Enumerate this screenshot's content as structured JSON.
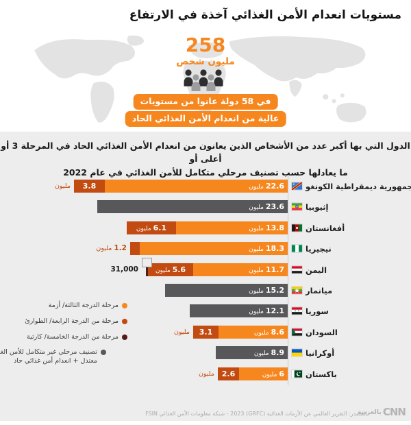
{
  "header": {
    "title": "مستويات انعدام الأمن الغذائي آخذة في الارتفاع",
    "big_number": "258",
    "big_number_label": "مليون شخص",
    "highlight_line1": "في 58 دولة عانوا من مستويات",
    "highlight_line2": "عالية من انعدام الأمن الغذائي الحاد",
    "accent_color": "#F6871F"
  },
  "subtitle": {
    "line1": "الدول التي بها أكبر عدد من الأشخاص الذين يعانون من انعدام الأمن الغذائي الحاد في المرحلة 3 أو أعلى أو",
    "line2": "ما يعادلها حسب تصنيف مرحلي متكامل للأمن الغذائي في عام 2022"
  },
  "chart_data": {
    "type": "bar",
    "orientation": "horizontal-rtl-stacked",
    "unit": "مليون",
    "xlim_millions": [
      0,
      26.4
    ],
    "grid": false,
    "legend_position": "bottom-left",
    "phases": {
      "p3": {
        "label": "مرحلة الدرجة الثالثة/ أزمة",
        "color": "#F6871F"
      },
      "p4": {
        "label": "مرحلة من الدرجة الرابعة/ الطوارئ",
        "color": "#C14B10"
      },
      "p5": {
        "label": "مرحلة من الدرجة الخامسة/ كارثية",
        "color": "#571A1A"
      },
      "none": {
        "label": "تصنيف مرحلي غير متكامل للأمن الغذائي",
        "label2": "معتدل + انعدام أمن غذائي حاد",
        "color": "#58585A"
      }
    },
    "categories": [
      "جمهورية ديمقراطية الكونغو",
      "إثيوبيا",
      "أفغانستان",
      "نيجيريا",
      "اليمن",
      "ميانمار",
      "سوريا",
      "السودان",
      "أوكرانيا",
      "باكستان"
    ],
    "rows": [
      {
        "country": "جمهورية ديمقراطية الكونغو",
        "flag": "drc",
        "segments": [
          {
            "phase": "p3",
            "value": 22.6,
            "show": "num_unit"
          },
          {
            "phase": "p4",
            "value": 3.8,
            "show": "num"
          }
        ],
        "outside": {
          "unit": true,
          "color": "p4"
        }
      },
      {
        "country": "إثيوبيا",
        "flag": "ethiopia",
        "segments": [
          {
            "phase": "none",
            "value": 23.6,
            "show": "num_unit"
          }
        ]
      },
      {
        "country": "أفغانستان",
        "flag": "afghanistan",
        "segments": [
          {
            "phase": "p3",
            "value": 13.8,
            "show": "num_unit"
          },
          {
            "phase": "p4",
            "value": 6.1,
            "show": "num_unit"
          }
        ]
      },
      {
        "country": "نيجيريا",
        "flag": "nigeria",
        "segments": [
          {
            "phase": "p3",
            "value": 18.3,
            "show": "num_unit"
          },
          {
            "phase": "p4",
            "value": 1.2,
            "show": "none"
          }
        ],
        "outside": {
          "num": "1.2",
          "unit": true,
          "color": "p4"
        }
      },
      {
        "country": "اليمن",
        "flag": "yemen",
        "segments": [
          {
            "phase": "p3",
            "value": 11.7,
            "show": "num_unit"
          },
          {
            "phase": "p4",
            "value": 5.6,
            "show": "num_unit"
          }
        ],
        "p5": {
          "value": 0.031,
          "label": "31,000"
        }
      },
      {
        "country": "ميانمار",
        "flag": "myanmar",
        "segments": [
          {
            "phase": "none",
            "value": 15.2,
            "show": "num_unit"
          }
        ]
      },
      {
        "country": "سوريا",
        "flag": "syria",
        "segments": [
          {
            "phase": "none",
            "value": 12.1,
            "show": "num_unit"
          }
        ]
      },
      {
        "country": "السودان",
        "flag": "sudan",
        "segments": [
          {
            "phase": "p3",
            "value": 8.6,
            "show": "num_unit"
          },
          {
            "phase": "p4",
            "value": 3.1,
            "show": "num"
          }
        ],
        "outside": {
          "unit": true,
          "color": "p4"
        }
      },
      {
        "country": "أوكرانيا",
        "flag": "ukraine",
        "segments": [
          {
            "phase": "none",
            "value": 8.9,
            "show": "num_unit"
          }
        ]
      },
      {
        "country": "باكستان",
        "flag": "pakistan",
        "segments": [
          {
            "phase": "p3",
            "value": 6,
            "show": "num_unit"
          },
          {
            "phase": "p4",
            "value": 2.6,
            "show": "num"
          }
        ],
        "outside": {
          "unit": true,
          "color": "p4"
        }
      }
    ]
  },
  "footer": {
    "source": "المصدر: التقرير العالمي عن الأزمات الغذائية (GRFC) 2023 - شبكة معلومات الأمن الغذائي FSIN",
    "logo_cnn": "CNN",
    "logo_arabic": "بالعربية"
  }
}
